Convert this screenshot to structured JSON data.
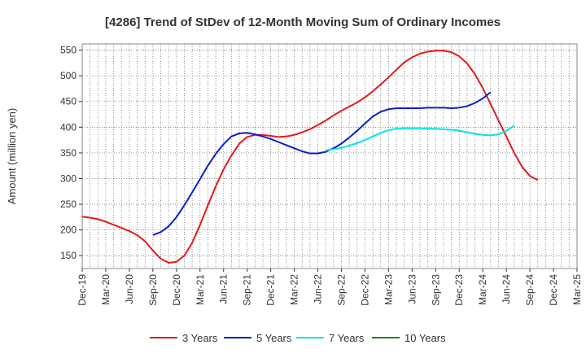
{
  "chart_data": {
    "type": "line",
    "title": "[4286]  Trend of StDev of 12-Month Moving Sum of Ordinary Incomes",
    "xlabel": "",
    "ylabel": "Amount (million yen)",
    "ylim": [
      125,
      562
    ],
    "yticks": [
      150,
      200,
      250,
      300,
      350,
      400,
      450,
      500,
      550
    ],
    "x_start": "Dec-19",
    "x_end": "Mar-25",
    "xticks": [
      "Dec-19",
      "Mar-20",
      "Jun-20",
      "Sep-20",
      "Dec-20",
      "Mar-21",
      "Jun-21",
      "Sep-21",
      "Dec-21",
      "Mar-22",
      "Jun-22",
      "Sep-22",
      "Dec-22",
      "Mar-23",
      "Jun-23",
      "Sep-23",
      "Dec-23",
      "Mar-24",
      "Jun-24",
      "Sep-24",
      "Dec-24",
      "Mar-25"
    ],
    "grid": true,
    "legend_position": "bottom",
    "series": [
      {
        "name": "3 Years",
        "color": "#e31a1c",
        "start_index": 0,
        "values": [
          226,
          224,
          221,
          216,
          210,
          204,
          198,
          190,
          178,
          160,
          144,
          136,
          138,
          150,
          175,
          210,
          248,
          285,
          318,
          345,
          368,
          381,
          385,
          385,
          383,
          381,
          382,
          385,
          390,
          396,
          404,
          413,
          423,
          432,
          440,
          448,
          458,
          470,
          483,
          497,
          512,
          526,
          536,
          543,
          547,
          549,
          549,
          546,
          538,
          524,
          503,
          476,
          445,
          413,
          382,
          350,
          323,
          305,
          297
        ]
      },
      {
        "name": "5 Years",
        "color": "#0a1ec8",
        "start_index": 9,
        "values": [
          190,
          196,
          207,
          225,
          248,
          273,
          299,
          325,
          348,
          367,
          382,
          388,
          389,
          386,
          382,
          377,
          371,
          365,
          359,
          353,
          349,
          349,
          352,
          359,
          368,
          380,
          393,
          407,
          421,
          430,
          435,
          437,
          437,
          437,
          437,
          438,
          438,
          438,
          437,
          438,
          441,
          447,
          456,
          468
        ]
      },
      {
        "name": "7 Years",
        "color": "#00e5e5",
        "start_index": 31,
        "values": [
          355,
          357,
          360,
          364,
          369,
          375,
          382,
          389,
          394,
          397,
          398,
          398,
          398,
          397,
          397,
          396,
          395,
          393,
          390,
          387,
          385,
          384,
          386,
          393,
          403
        ]
      },
      {
        "name": "10 Years",
        "color": "#1a8a1a",
        "start_index": 0,
        "values": []
      }
    ]
  }
}
